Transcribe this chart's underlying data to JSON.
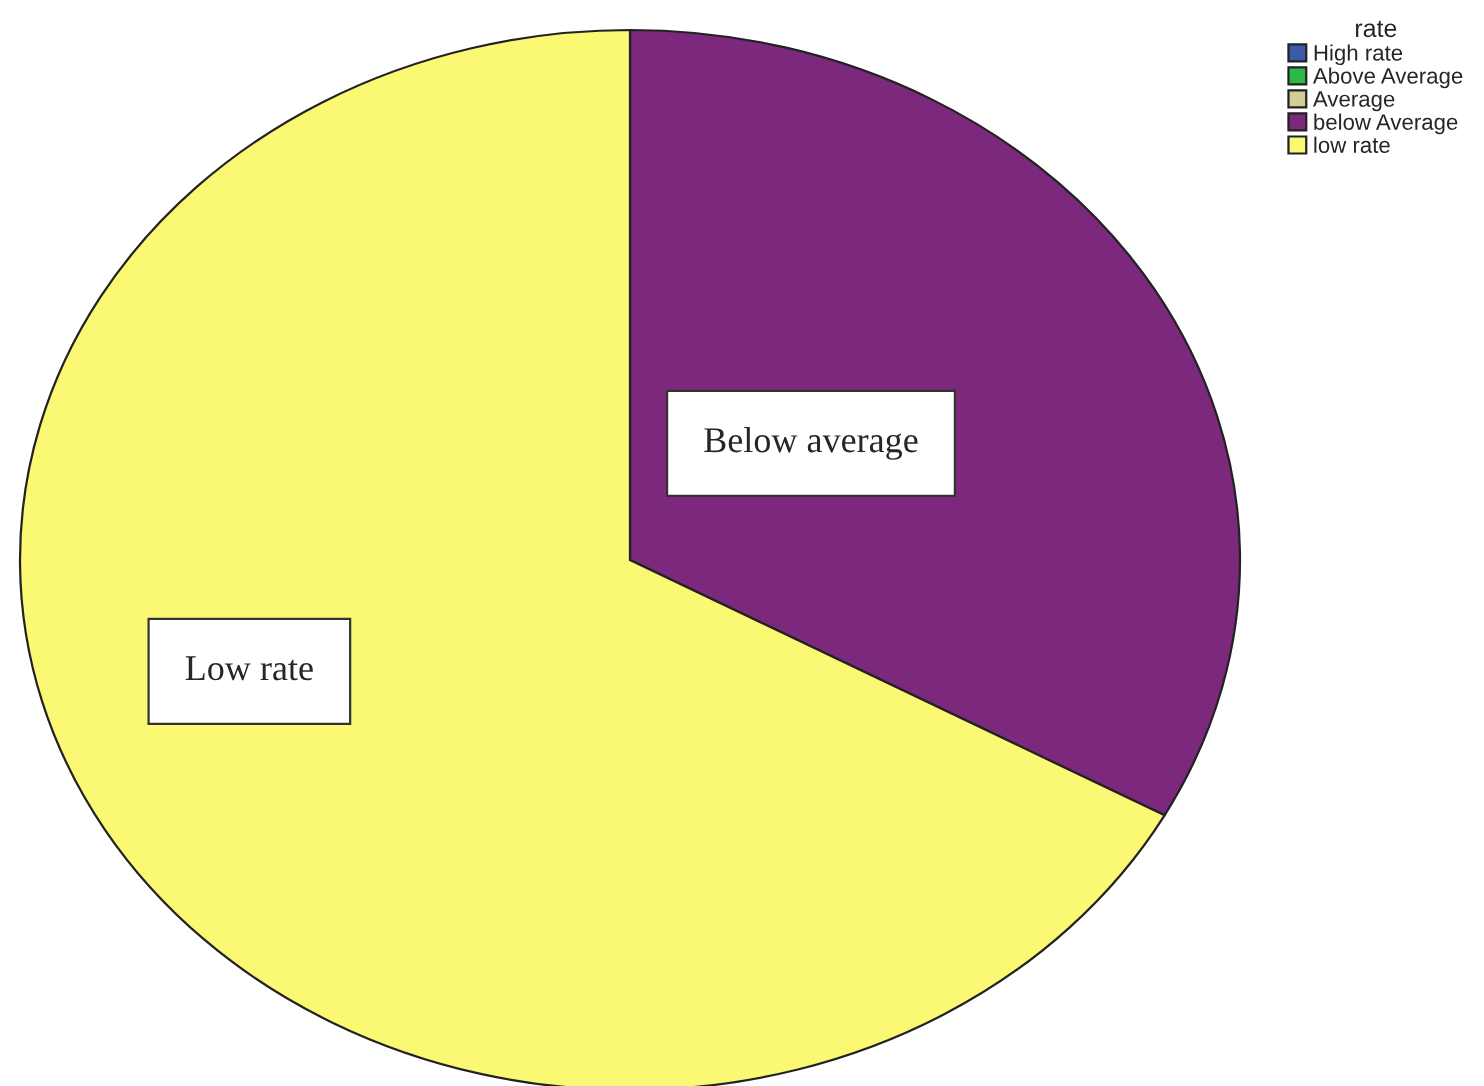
{
  "chart_data": {
    "type": "pie",
    "legend_title": "rate",
    "legend": "top right",
    "categories": [
      "High rate",
      "Above Average",
      "Average",
      "below Average",
      "low rate"
    ],
    "values": [
      0,
      0,
      0,
      33,
      67
    ],
    "colors": [
      "#3e58ac",
      "#2eb848",
      "#d3ce97",
      "#7b287d",
      "#fbf873"
    ],
    "annotations": [
      "Below average",
      "Low rate"
    ]
  }
}
